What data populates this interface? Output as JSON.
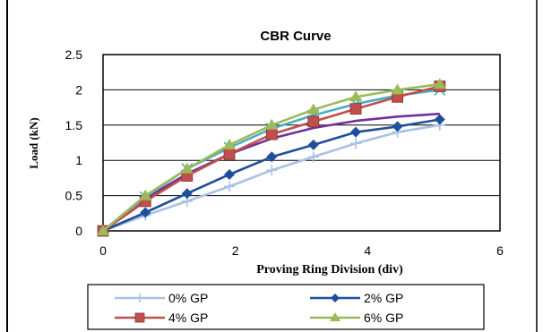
{
  "chart_data": {
    "type": "line",
    "title": "CBR Curve",
    "xlabel": "Proving Ring Division (div)",
    "ylabel": "Load (kN)",
    "xlim": [
      0,
      6
    ],
    "ylim": [
      0,
      2.5
    ],
    "x_ticks": [
      "0",
      "2",
      "4",
      "6"
    ],
    "y_ticks": [
      "0",
      "0.5",
      "1",
      "1.5",
      "2",
      "2.5"
    ],
    "grid": "horizontal",
    "legend_position": "bottom",
    "x": [
      0,
      0.64,
      1.27,
      1.91,
      2.55,
      3.18,
      3.82,
      4.45,
      5.09
    ],
    "series": [
      {
        "name": "0% GP",
        "color": "#a9c1e4",
        "marker": "plus",
        "values": [
          0,
          0.22,
          0.42,
          0.63,
          0.86,
          1.05,
          1.24,
          1.4,
          1.5
        ]
      },
      {
        "name": "2% GP",
        "color": "#1f4e9c",
        "marker": "diamond",
        "values": [
          0,
          0.26,
          0.53,
          0.8,
          1.05,
          1.22,
          1.4,
          1.48,
          1.58
        ]
      },
      {
        "name": "4% GP",
        "color": "#c0504d",
        "marker": "square",
        "values": [
          0,
          0.42,
          0.78,
          1.09,
          1.37,
          1.55,
          1.73,
          1.9,
          2.05
        ]
      },
      {
        "name": "6% GP",
        "color": "#9bbb59",
        "marker": "triangle",
        "values": [
          0,
          0.5,
          0.88,
          1.22,
          1.5,
          1.72,
          1.9,
          2.0,
          2.08
        ]
      },
      {
        "name": "",
        "color": "#7030a0",
        "marker": "none",
        "values": [
          0,
          0.46,
          0.81,
          1.09,
          1.31,
          1.46,
          1.56,
          1.62,
          1.66
        ]
      },
      {
        "name": "",
        "color": "#4bacc6",
        "marker": "cross",
        "values": [
          0,
          0.48,
          0.88,
          1.18,
          1.45,
          1.64,
          1.8,
          1.92,
          2.0
        ]
      }
    ]
  }
}
